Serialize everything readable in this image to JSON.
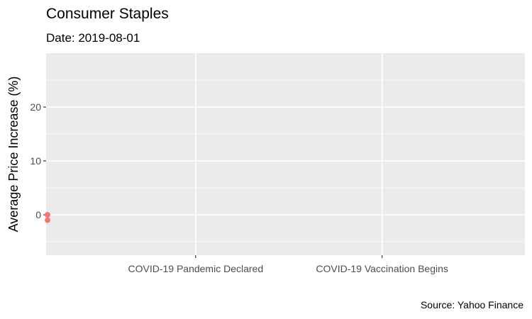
{
  "chart_data": {
    "type": "scatter",
    "title": "Consumer Staples",
    "subtitle": "Date: 2019-08-01",
    "xlabel": "",
    "ylabel": "Average Price Increase (%)",
    "caption": "Source: Yahoo Finance",
    "x_ticks": [
      {
        "label": "COVID-19 Pandemic Declared",
        "value": "2020-03-11"
      },
      {
        "label": "COVID-19 Vaccination Begins",
        "value": "2020-12-14"
      }
    ],
    "xlim": [
      "2019-08-01",
      "2021-07-15"
    ],
    "y_ticks": [
      0,
      10,
      20
    ],
    "ylim": [
      -7.5,
      30
    ],
    "grid": true,
    "series": [
      {
        "color": "#F8766D",
        "points": [
          {
            "x": "2019-08-01",
            "y": 0
          },
          {
            "x": "2019-08-01",
            "y": -1
          }
        ]
      }
    ]
  }
}
